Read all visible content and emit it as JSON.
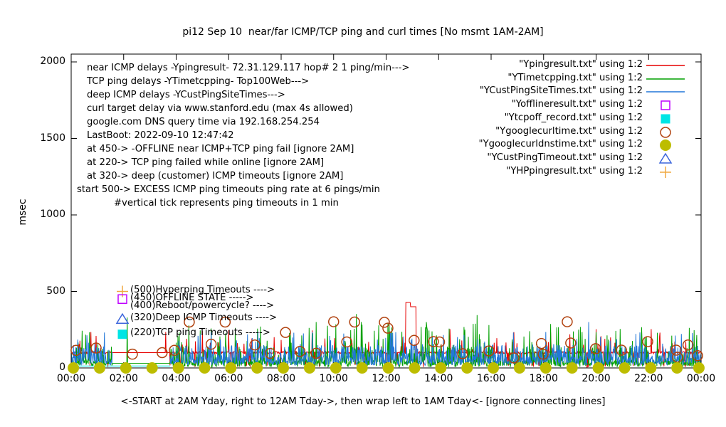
{
  "title": "pi12 Sep 10  near/far ICMP/TCP ping and curl times [No msmt 1AM-2AM]",
  "y_axis": {
    "label": "msec",
    "ticks": [
      0,
      500,
      1000,
      1500,
      2000
    ],
    "max": 2000
  },
  "x_axis": {
    "ticks": [
      "00:00",
      "02:00",
      "04:00",
      "06:00",
      "08:00",
      "10:00",
      "12:00",
      "14:00",
      "16:00",
      "18:00",
      "20:00",
      "22:00",
      "00:00"
    ],
    "label": "<-START at 2AM Yday, right to 12AM Tday->, then wrap left to 1AM Tday<- [ignore connecting lines]"
  },
  "info_block": {
    "lines": [
      "near ICMP delays -Ypingresult- 72.31.129.117 hop# 2 1 ping/min--->",
      "TCP ping delays -YTimetcpping- Top100Web--->",
      "deep ICMP delays -YCustPingSiteTimes--->",
      "curl target delay via www.stanford.edu (max 4s allowed)",
      "google.com DNS query time via 192.168.254.254",
      "LastBoot: 2022-09-10 12:47:42",
      "at 450-> -OFFLINE near ICMP+TCP ping fail [ignore 2AM]",
      "at 220-> TCP ping failed while online [ignore 2AM]",
      "at 320-> deep (customer) ICMP timeouts [ignore 2AM]",
      "start 500-> EXCESS ICMP ping timeouts ping rate at 6 pings/min",
      "#vertical tick represents ping timeouts in 1 min"
    ]
  },
  "annotations": [
    {
      "value": 500,
      "text": "(500)Hyperping Timeouts ---->",
      "marker": "plus",
      "color": "#f0a840"
    },
    {
      "value": 450,
      "text": "(450)OFFLINE STATE ----->",
      "marker": "open-square",
      "color": "#bf00ff"
    },
    {
      "value": 400,
      "text": "(400)Reboot/powercycle? ---->",
      "marker": null,
      "color": null
    },
    {
      "value": 320,
      "text": "(320)Deep ICMP Timeouts ---->",
      "marker": "open-triangle",
      "color": "#3c66dc"
    },
    {
      "value": 220,
      "text": "(220)TCP ping Timeouts ----->",
      "marker": "filled-square",
      "color": "#00e5e5"
    }
  ],
  "legend": [
    {
      "label": "\"Ypingresult.txt\" using 1:2",
      "marker": "line",
      "color": "#e60000"
    },
    {
      "label": "\"YTimetcpping.txt\" using 1:2",
      "marker": "line",
      "color": "#00a000"
    },
    {
      "label": "\"YCustPingSiteTimes.txt\" using 1:2",
      "marker": "line",
      "color": "#2277d8"
    },
    {
      "label": "\"Yofflineresult.txt\" using 1:2",
      "marker": "open-square",
      "color": "#bf00ff"
    },
    {
      "label": "\"Ytcpoff_record.txt\" using 1:2",
      "marker": "filled-square",
      "color": "#00e5e5"
    },
    {
      "label": "\"Ygooglecurltime.txt\" using 1:2",
      "marker": "open-circle",
      "color": "#b0410e"
    },
    {
      "label": "\"Ygooglecurldnstime.txt\" using 1:2",
      "marker": "filled-circle",
      "color": "#bdbd00"
    },
    {
      "label": "\"YCustPingTimeout.txt\" using 1:2",
      "marker": "open-triangle",
      "color": "#3c66dc"
    },
    {
      "label": "\"YHPpingresult.txt\" using 1:2",
      "marker": "plus",
      "color": "#f0a840"
    }
  ],
  "chart_data": {
    "type": "line",
    "x_unit": "time-of-day minutes (0-1440), 24h wrap: data starts 2AM yesterday",
    "y_unit": "msec",
    "ylim": [
      0,
      2000
    ],
    "xlim_minutes": [
      0,
      1440
    ],
    "grid": false,
    "legend_position": "top-right",
    "no_measurement_gap_minutes": [
      95,
      226
    ],
    "series": [
      {
        "name": "Ypingresult.txt (near ICMP ping)",
        "color": "#e60000",
        "render": "noisy",
        "seed": 11,
        "base": 100,
        "jitter": 7,
        "p1": 0.05,
        "s1": [
          120,
          200
        ],
        "p2": 0.012,
        "s2": [
          200,
          270
        ],
        "dip_p": 0.05,
        "gap_value": 100,
        "plateau": [
          [
            765,
            776,
            428
          ],
          [
            776,
            788,
            400
          ]
        ],
        "events": [
          [
            216,
            235
          ],
          [
            680,
            170
          ],
          [
            846,
            155
          ],
          [
            928,
            190
          ],
          [
            1096,
            235
          ],
          [
            1140,
            220
          ],
          [
            1220,
            190
          ],
          [
            1345,
            205
          ],
          [
            1405,
            170
          ]
        ]
      },
      {
        "name": "YTimetcpping.txt (TCP ping Top100Web)",
        "color": "#00a000",
        "render": "noisy",
        "seed": 7,
        "base": 28,
        "jitter": 22,
        "p1": 0.28,
        "s1": [
          55,
          140
        ],
        "p2": 0.06,
        "s2": [
          140,
          290
        ],
        "dip_p": 0,
        "gap_value": 30,
        "events": [
          [
            128,
            330
          ],
          [
            247,
            232
          ],
          [
            320,
            258
          ],
          [
            375,
            262
          ],
          [
            560,
            300
          ],
          [
            652,
            352
          ],
          [
            663,
            300
          ],
          [
            800,
            268
          ],
          [
            812,
            300
          ],
          [
            900,
            250
          ],
          [
            928,
            345
          ],
          [
            955,
            280
          ],
          [
            1048,
            240
          ],
          [
            1110,
            265
          ],
          [
            1160,
            250
          ],
          [
            1255,
            255
          ],
          [
            1340,
            230
          ],
          [
            1430,
            215
          ]
        ]
      },
      {
        "name": "YCustPingSiteTimes.txt (deep ICMP)",
        "color": "#2277d8",
        "render": "noisy",
        "seed": 23,
        "base": 45,
        "jitter": 28,
        "p1": 0.32,
        "s1": [
          75,
          150
        ],
        "p2": 0.035,
        "s2": [
          150,
          240
        ],
        "dip_p": 0,
        "gap_value": null,
        "events": [
          [
            15,
            185
          ],
          [
            40,
            165
          ],
          [
            290,
            210
          ],
          [
            430,
            195
          ],
          [
            700,
            185
          ],
          [
            760,
            205
          ],
          [
            1085,
            235
          ],
          [
            1183,
            300
          ],
          [
            1300,
            232
          ],
          [
            1395,
            222
          ],
          [
            1420,
            228
          ]
        ]
      },
      {
        "name": "Ytcpoff_record.txt (TCP-off record)",
        "color": "#00e5e5",
        "render": "line",
        "points": [
          [
            0,
            13
          ],
          [
            226,
            13
          ]
        ]
      },
      {
        "name": "Ygooglecurltime.txt (curl www.stanford.edu)",
        "color": "#b0410e",
        "render": "points",
        "marker": "open-circle",
        "points": [
          [
            11,
            115
          ],
          [
            57,
            130
          ],
          [
            140,
            90
          ],
          [
            208,
            100
          ],
          [
            236,
            115
          ],
          [
            270,
            300
          ],
          [
            320,
            155
          ],
          [
            352,
            300
          ],
          [
            420,
            150
          ],
          [
            455,
            95
          ],
          [
            490,
            232
          ],
          [
            523,
            108
          ],
          [
            560,
            96
          ],
          [
            600,
            302
          ],
          [
            630,
            170
          ],
          [
            648,
            300
          ],
          [
            716,
            298
          ],
          [
            724,
            260
          ],
          [
            784,
            180
          ],
          [
            828,
            172
          ],
          [
            842,
            170
          ],
          [
            895,
            93
          ],
          [
            955,
            111
          ],
          [
            1012,
            65
          ],
          [
            1075,
            160
          ],
          [
            1079,
            90
          ],
          [
            1134,
            302
          ],
          [
            1142,
            163
          ],
          [
            1199,
            126
          ],
          [
            1258,
            116
          ],
          [
            1318,
            172
          ],
          [
            1383,
            116
          ],
          [
            1386,
            70
          ],
          [
            1410,
            150
          ],
          [
            1432,
            80
          ]
        ]
      },
      {
        "name": "Ygooglecurldnstime.txt (google.com DNS query)",
        "color": "#bdbd00",
        "render": "points",
        "marker": "filled-circle",
        "points": [
          [
            5,
            0
          ],
          [
            65,
            0
          ],
          [
            125,
            0
          ],
          [
            185,
            0
          ],
          [
            245,
            0
          ],
          [
            305,
            0
          ],
          [
            365,
            0
          ],
          [
            425,
            0
          ],
          [
            485,
            0
          ],
          [
            545,
            0
          ],
          [
            605,
            0
          ],
          [
            665,
            0
          ],
          [
            725,
            0
          ],
          [
            785,
            0
          ],
          [
            845,
            0
          ],
          [
            905,
            0
          ],
          [
            965,
            0
          ],
          [
            1025,
            0
          ],
          [
            1085,
            0
          ],
          [
            1145,
            0
          ],
          [
            1205,
            0
          ],
          [
            1265,
            0
          ],
          [
            1325,
            0
          ],
          [
            1385,
            0
          ],
          [
            1435,
            0
          ]
        ]
      }
    ]
  }
}
